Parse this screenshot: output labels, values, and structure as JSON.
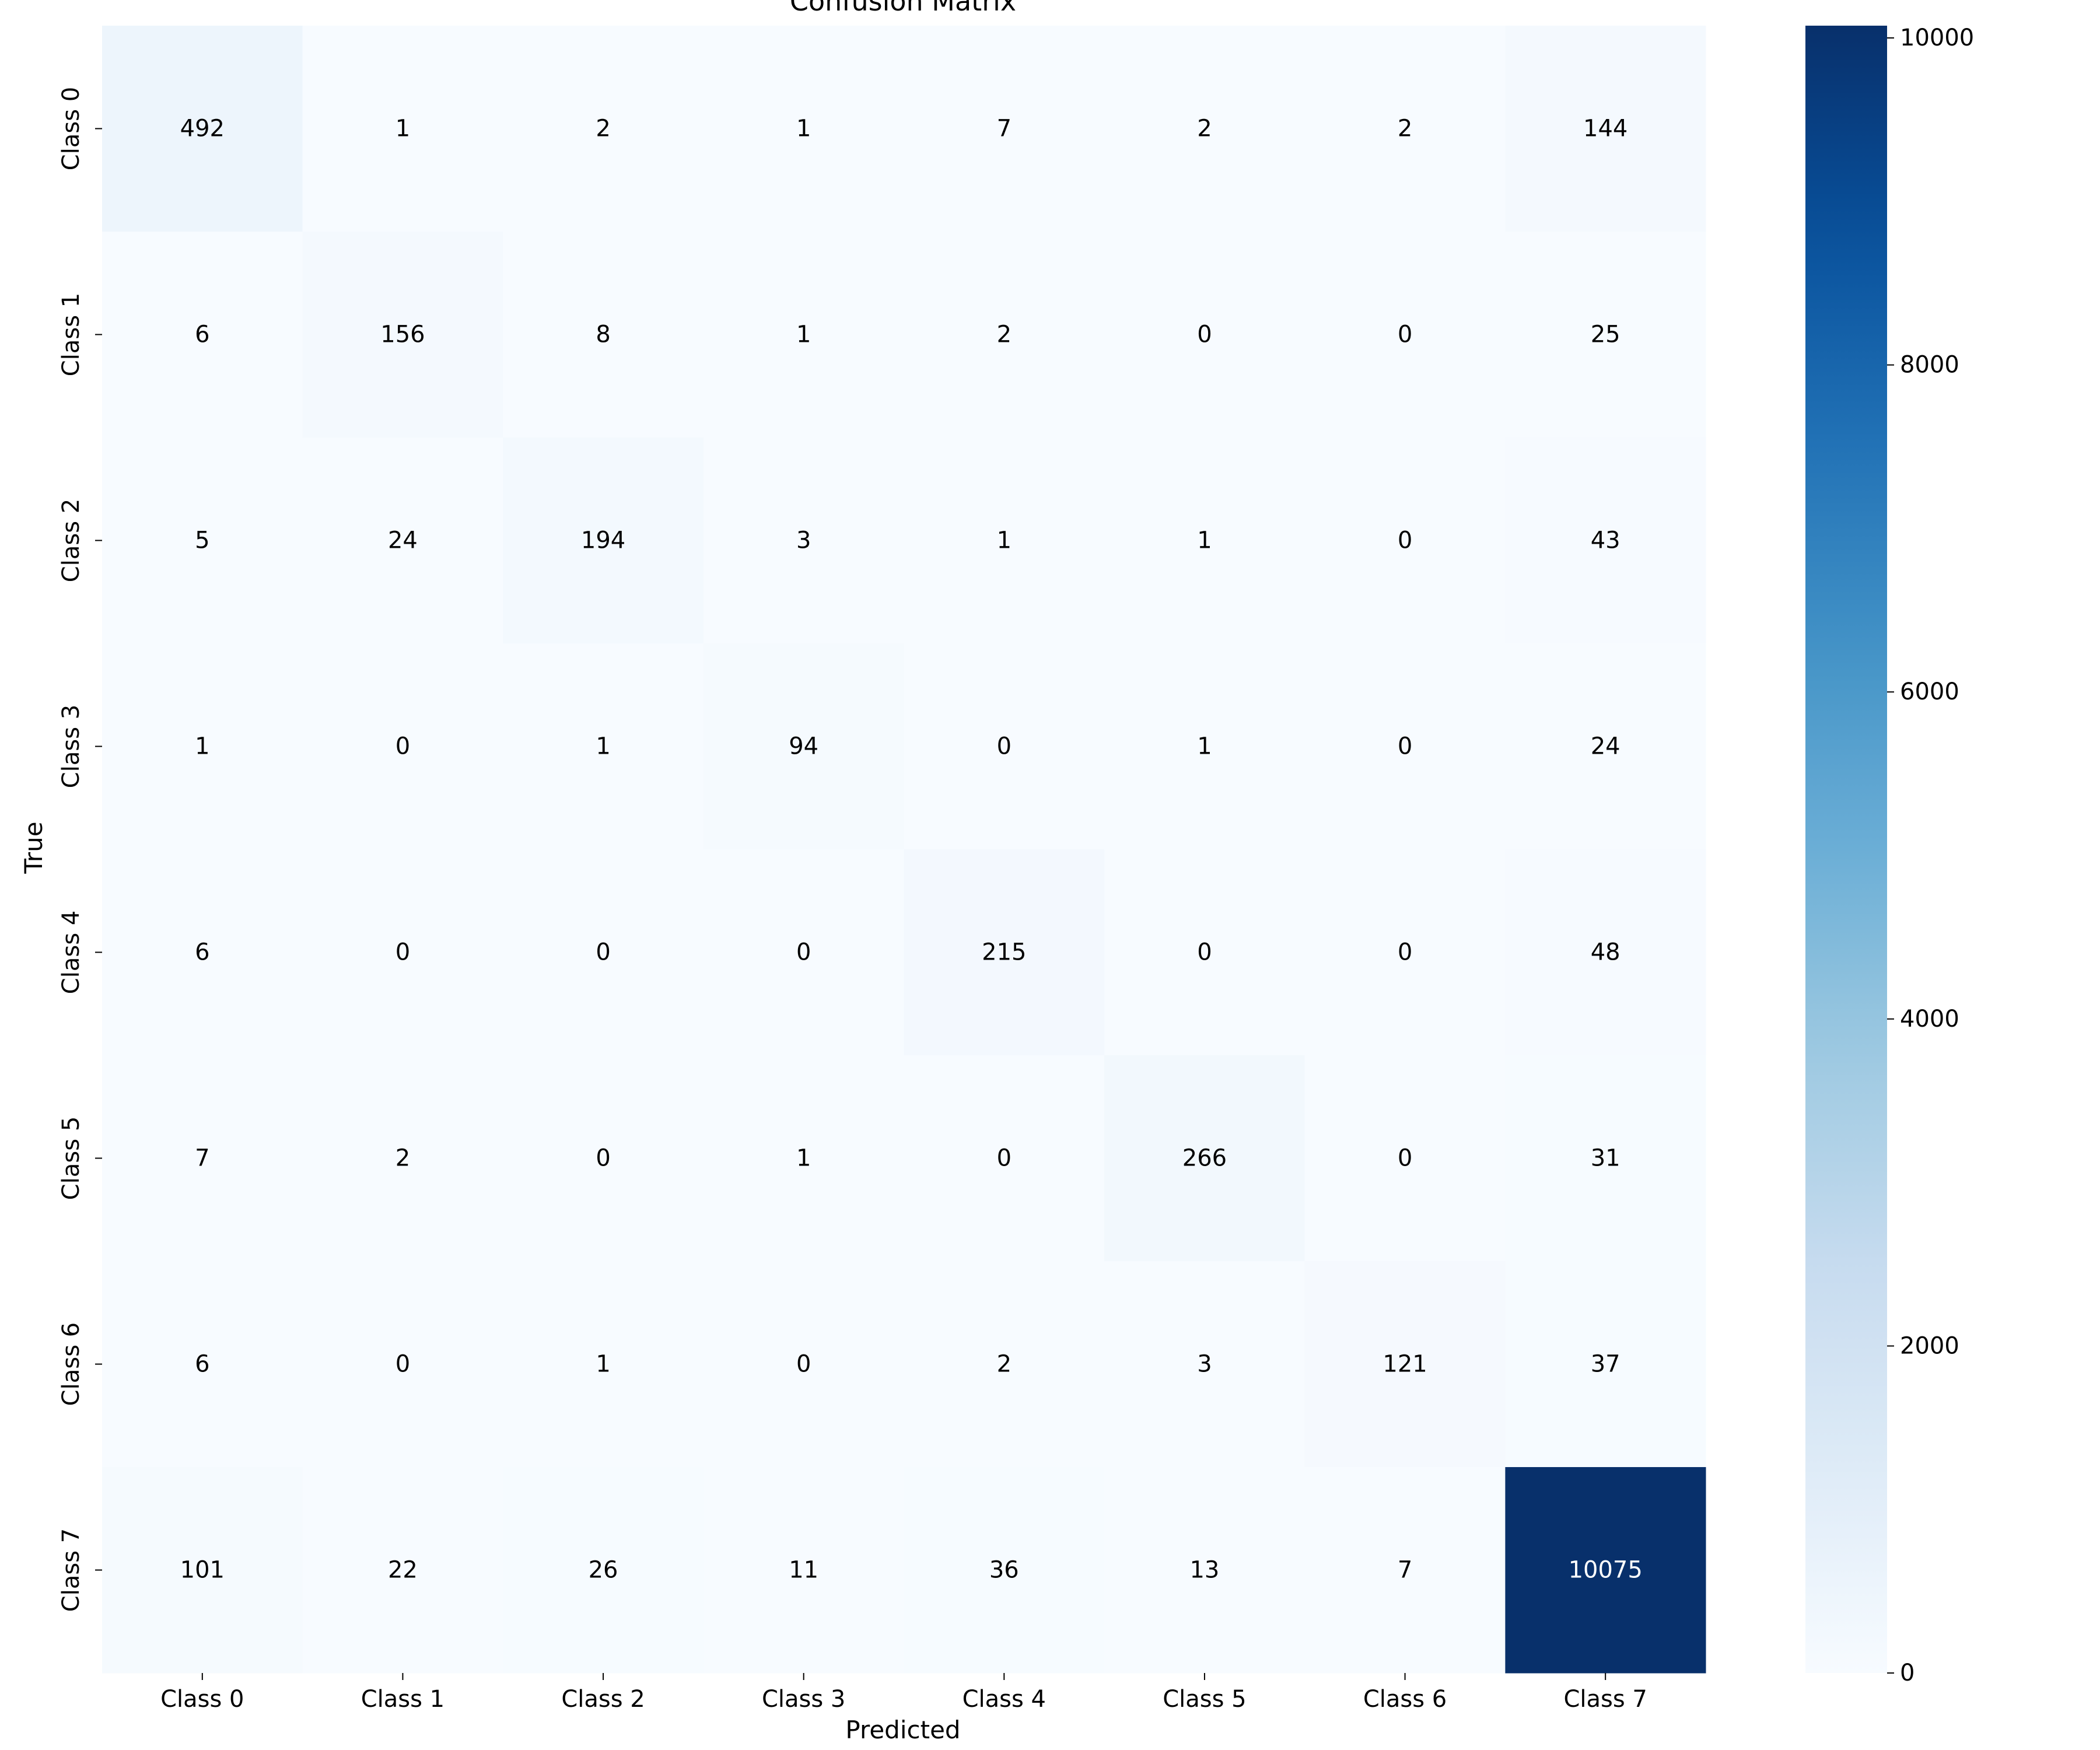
{
  "chart_data": {
    "type": "heatmap",
    "title": "Confusion Matrix",
    "xlabel": "Predicted",
    "ylabel": "True",
    "x_categories": [
      "Class 0",
      "Class 1",
      "Class 2",
      "Class 3",
      "Class 4",
      "Class 5",
      "Class 6",
      "Class 7"
    ],
    "y_categories": [
      "Class 0",
      "Class 1",
      "Class 2",
      "Class 3",
      "Class 4",
      "Class 5",
      "Class 6",
      "Class 7"
    ],
    "matrix": [
      [
        492,
        1,
        2,
        1,
        7,
        2,
        2,
        144
      ],
      [
        6,
        156,
        8,
        1,
        2,
        0,
        0,
        25
      ],
      [
        5,
        24,
        194,
        3,
        1,
        1,
        0,
        43
      ],
      [
        1,
        0,
        1,
        94,
        0,
        1,
        0,
        24
      ],
      [
        6,
        0,
        0,
        0,
        215,
        0,
        0,
        48
      ],
      [
        7,
        2,
        0,
        1,
        0,
        266,
        0,
        31
      ],
      [
        6,
        0,
        1,
        0,
        2,
        3,
        121,
        37
      ],
      [
        101,
        22,
        26,
        11,
        36,
        13,
        7,
        10075
      ]
    ],
    "colorbar": {
      "colormap": "Blues",
      "min": 0,
      "max": 10075,
      "ticks": [
        0,
        2000,
        4000,
        6000,
        8000,
        10000
      ]
    },
    "grid": false
  }
}
